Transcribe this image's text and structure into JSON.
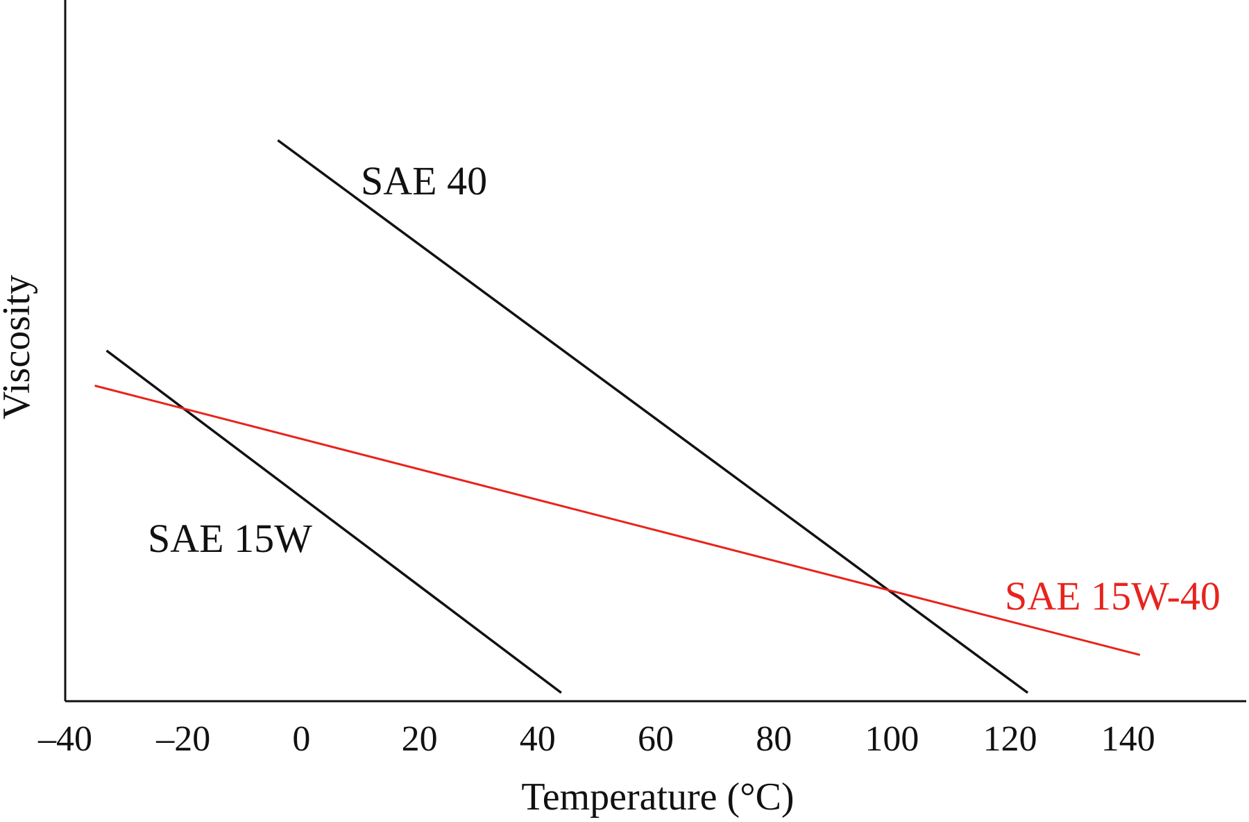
{
  "chart_data": {
    "type": "line",
    "title": "",
    "xlabel": "Temperature (°C)",
    "ylabel": "Viscosity",
    "xlim": [
      -40,
      160
    ],
    "x_ticks": [
      -40,
      -20,
      0,
      20,
      40,
      60,
      80,
      100,
      120,
      140
    ],
    "x_tick_labels": [
      "–40",
      "–20",
      "0",
      "20",
      "40",
      "60",
      "80",
      "100",
      "120",
      "140"
    ],
    "ylim": [
      0,
      100
    ],
    "y_ticks_shown": false,
    "grid": false,
    "legend": "none (series labeled directly on lines)",
    "series": [
      {
        "name": "SAE 40",
        "color": "#111111",
        "x": [
          -4,
          123
        ],
        "y": [
          80,
          1.2
        ]
      },
      {
        "name": "SAE 15W",
        "color": "#111111",
        "x": [
          -33,
          44
        ],
        "y": [
          50,
          1.2
        ]
      },
      {
        "name": "SAE 15W-40",
        "color": "#e8231c",
        "x": [
          -35,
          142
        ],
        "y": [
          45,
          6.6
        ]
      }
    ]
  }
}
